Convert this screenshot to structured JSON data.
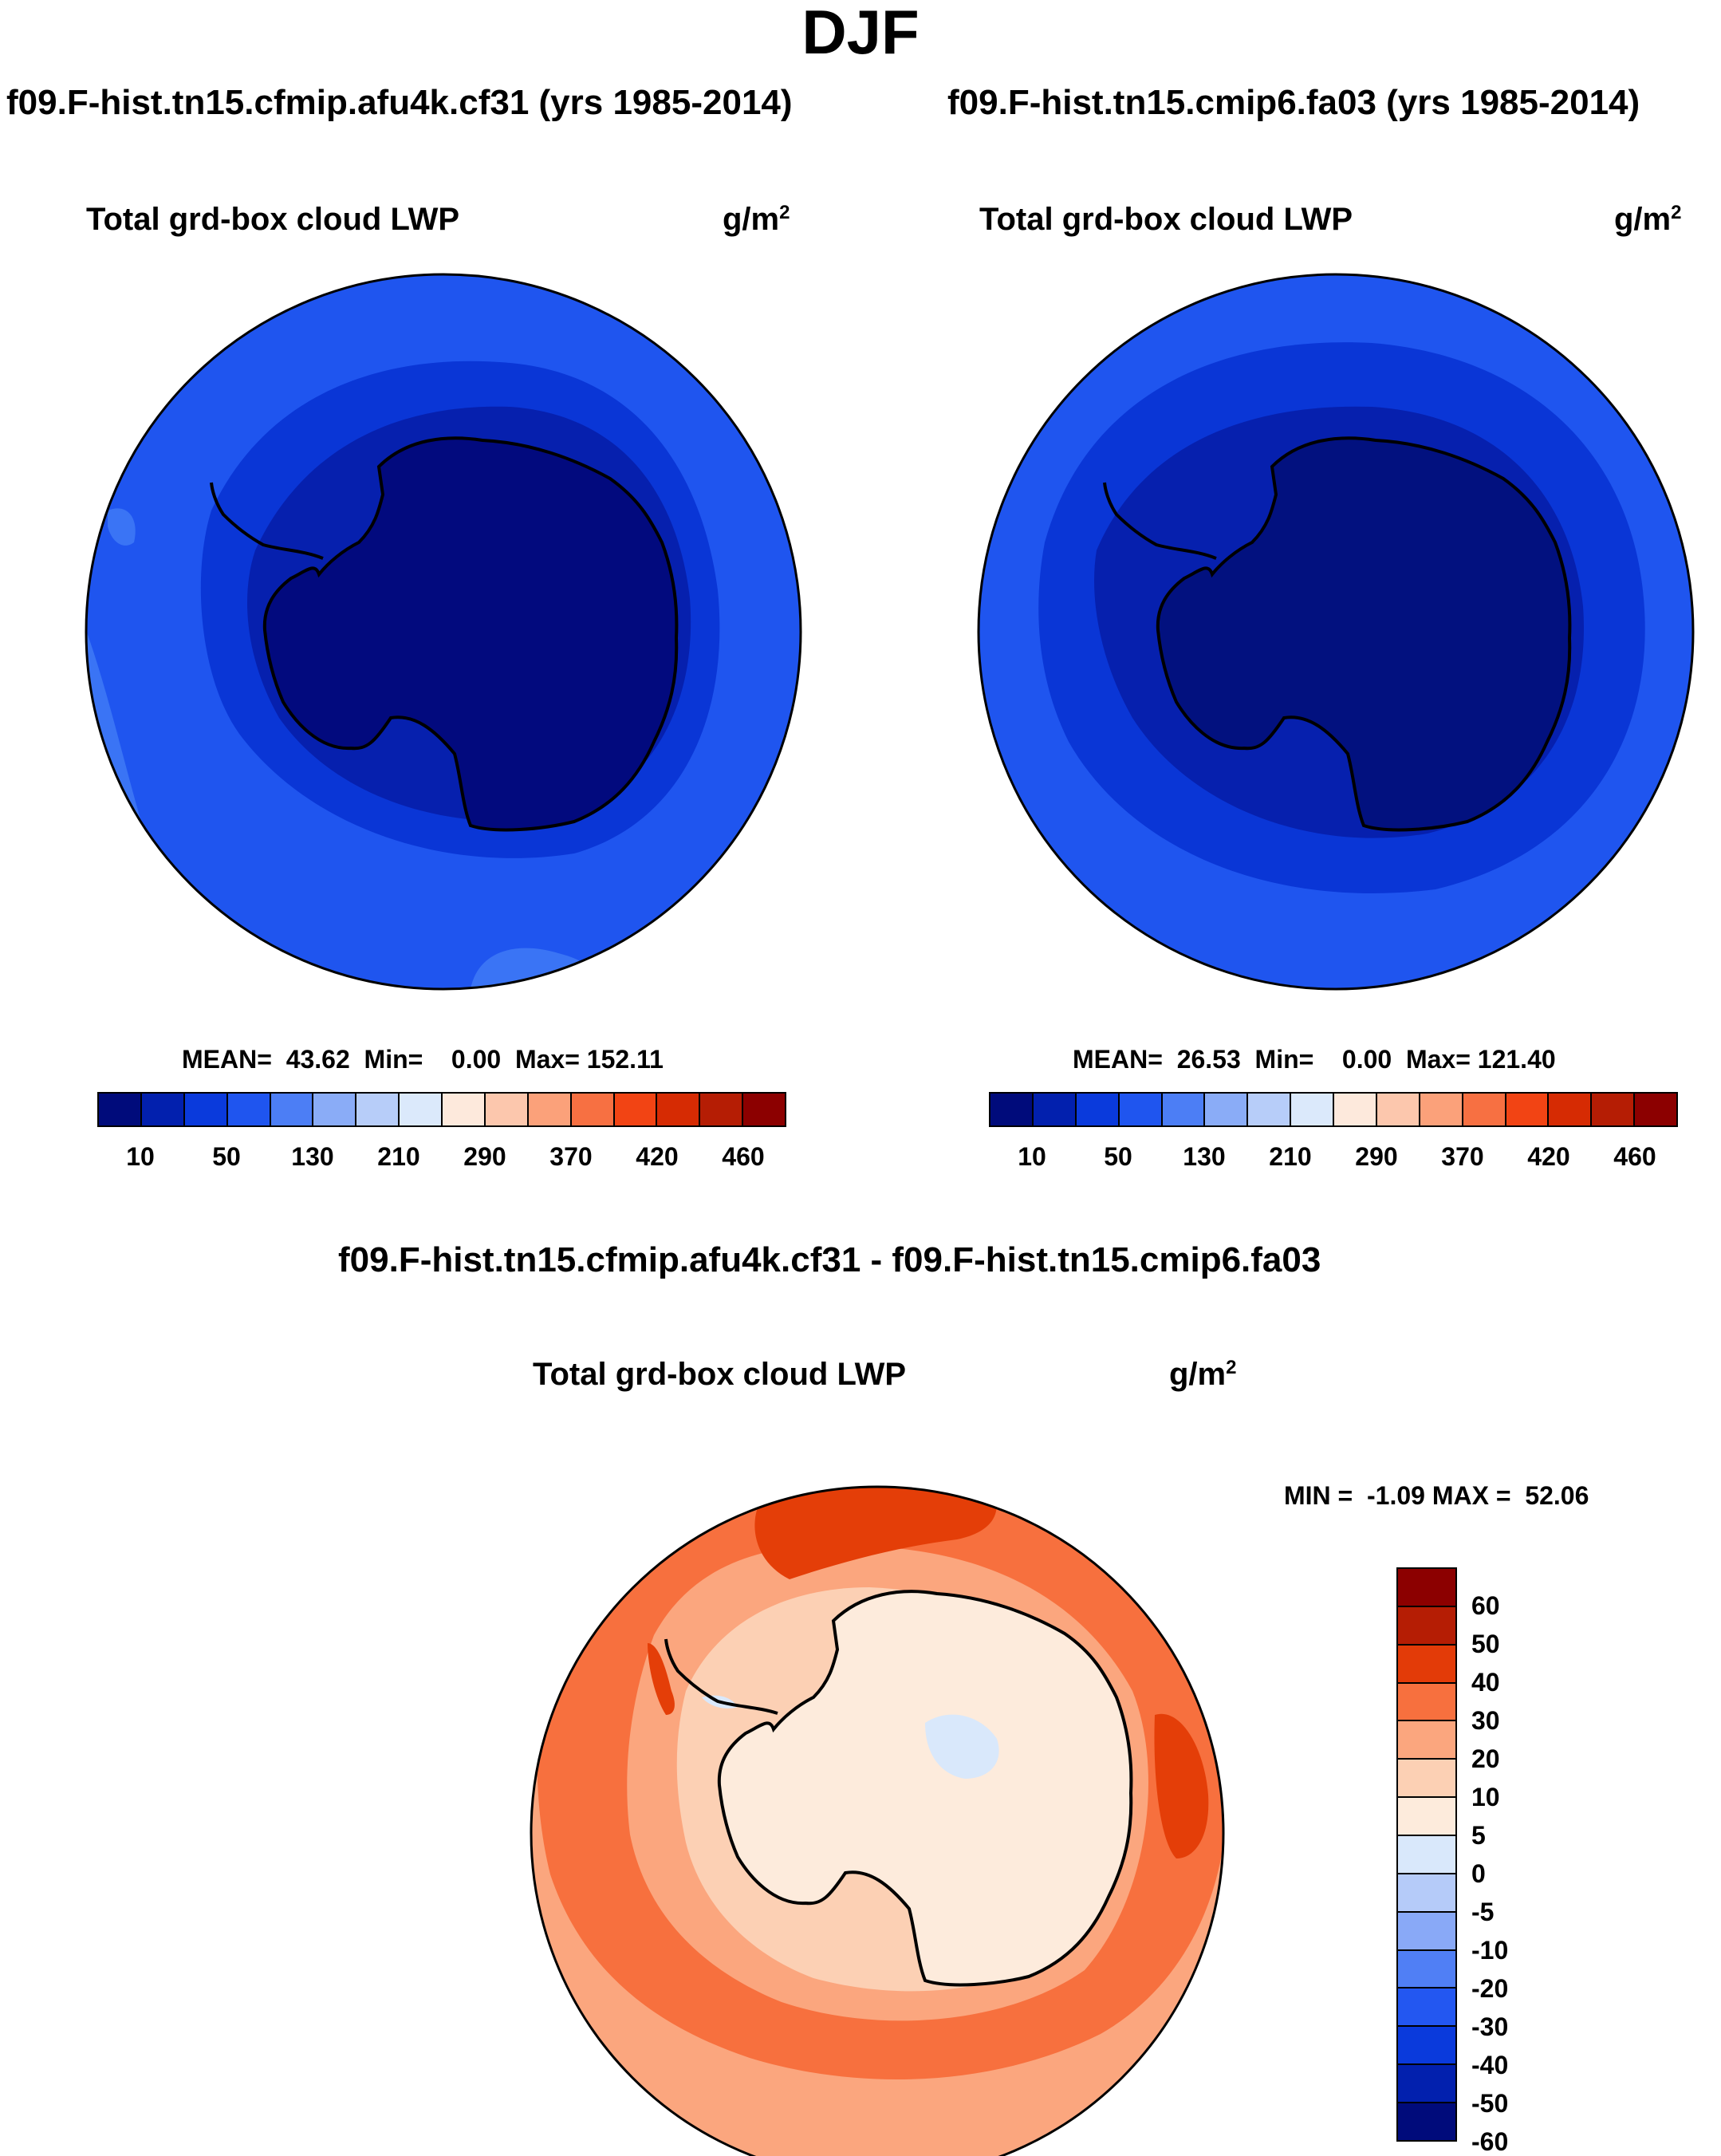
{
  "page_title": "DJF",
  "panels": [
    {
      "case_title": "f09.F-hist.tn15.cfmip.afu4k.cf31 (yrs 1985-2014)",
      "variable": "Total grd-box cloud LWP",
      "units": "g/m",
      "units_exp": "2",
      "stats": "MEAN=  43.62  Min=    0.00  Max= 152.11",
      "colors": {
        "outer": "#1f55ef",
        "mid": "#0a36d6",
        "inner": "#0620ae",
        "core": "#020a7e",
        "patch": "#3a74f5"
      }
    },
    {
      "case_title": "f09.F-hist.tn15.cmip6.fa03 (yrs 1985-2014)",
      "variable": "Total grd-box cloud LWP",
      "units": "g/m",
      "units_exp": "2",
      "stats": "MEAN=  26.53  Min=    0.00  Max= 121.40",
      "colors": {
        "outer": "#1f55ef",
        "mid": "#0a36d6",
        "inner": "#0620ae",
        "core": "#02117f",
        "patch": "#2b62f3"
      }
    }
  ],
  "abs_colorbar": {
    "colors": [
      "#000b7b",
      "#0220ae",
      "#0a3adc",
      "#1f55ef",
      "#4c7ef5",
      "#8aacf7",
      "#b7cdf9",
      "#dbe9fb",
      "#fde9dc",
      "#fcc7ad",
      "#fba17a",
      "#f77042",
      "#f24414",
      "#d62b03",
      "#b51d04",
      "#8c0000"
    ],
    "labels": [
      "10",
      "50",
      "130",
      "210",
      "290",
      "370",
      "420",
      "460"
    ]
  },
  "diff_panel": {
    "title": "f09.F-hist.tn15.cfmip.afu4k.cf31 - f09.F-hist.tn15.cmip6.fa03",
    "variable": "Total grd-box cloud LWP",
    "units": "g/m",
    "units_exp": "2",
    "stats": "MIN =  -1.09 MAX =  52.06",
    "colors": {
      "land": "#fdebdc",
      "ring1": "#fcd0b4",
      "ring2": "#fba67e",
      "ring3": "#f7703e",
      "hot": "#e43e08",
      "neg": "#d9e8fb"
    }
  },
  "diff_colorbar": {
    "colors": [
      "#8c0000",
      "#b51d04",
      "#e33b08",
      "#f7703e",
      "#fba67e",
      "#fcd0b4",
      "#fdebdc",
      "#d9e8fb",
      "#b5cbf9",
      "#89a9f7",
      "#507ff5",
      "#2357f1",
      "#0a3adc",
      "#0220ae",
      "#000b7b"
    ],
    "labels": [
      "60",
      "50",
      "40",
      "30",
      "20",
      "10",
      "5",
      "0",
      "-5",
      "-10",
      "-20",
      "-30",
      "-40",
      "-50",
      "-60"
    ]
  }
}
